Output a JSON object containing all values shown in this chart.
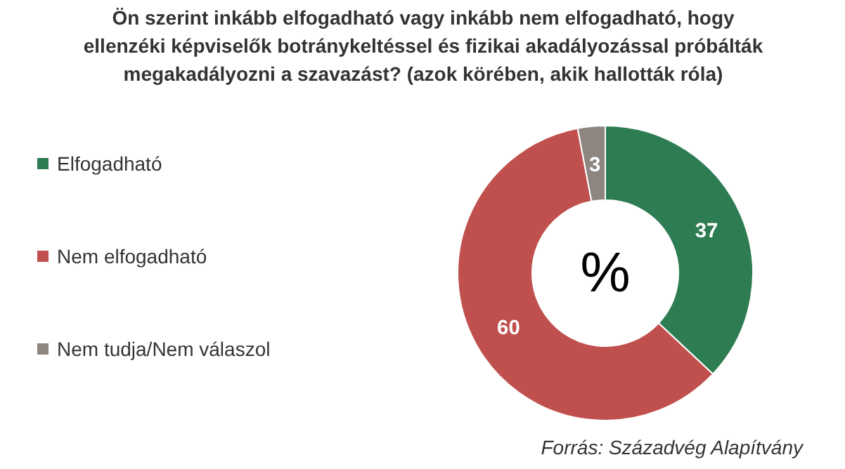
{
  "chart_data": {
    "type": "donut",
    "title": "Ön szerint inkább elfogadható vagy inkább nem elfogadható, hogy\nellenzéki képviselők botránykeltéssel és fizikai akadályozással próbálták\nmegakadályozni a szavazást? (azok körében, akik hallották róla)",
    "categories": [
      "Elfogadható",
      "Nem elfogadható",
      "Nem tudja/Nem válaszol"
    ],
    "values": [
      37,
      60,
      3
    ],
    "colors": [
      "#2e7d52",
      "#c0504d",
      "#8c8580"
    ],
    "data_labels": true,
    "legend": "left",
    "annotations": [
      "%",
      "Forrás: Századvég Alapítvány"
    ]
  }
}
